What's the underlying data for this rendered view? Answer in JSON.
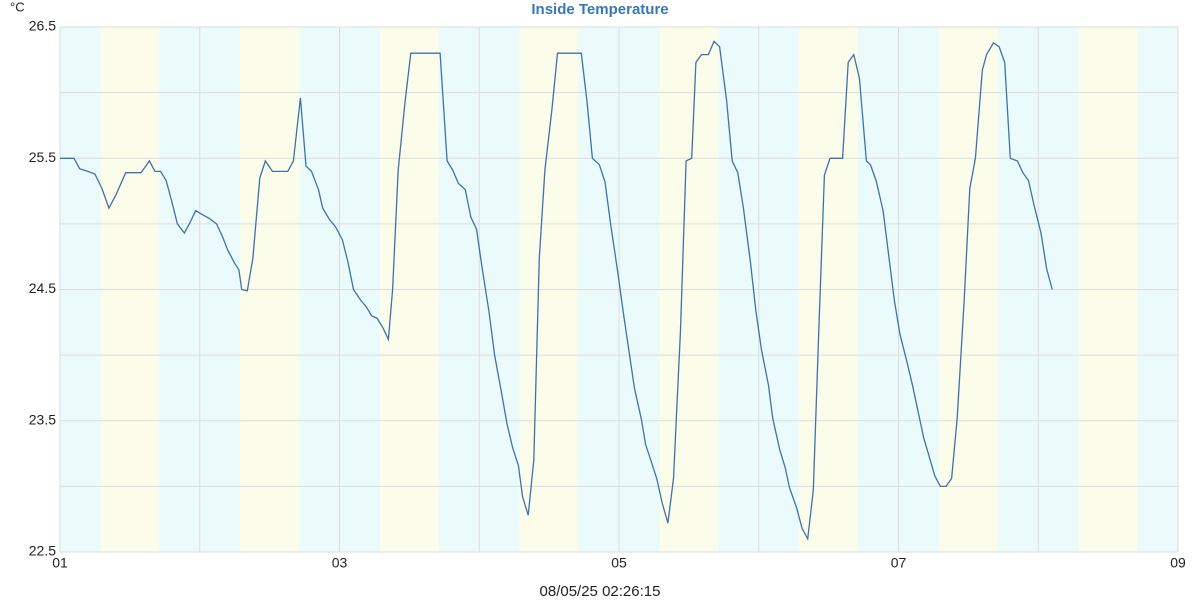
{
  "chart_data": {
    "type": "line",
    "title": "Inside Temperature",
    "y_unit": "°C",
    "footer": "08/05/25 02:26:15",
    "xlim": [
      1,
      9
    ],
    "ylim": [
      22.5,
      26.5
    ],
    "xticks": [
      {
        "value": 1,
        "label": "01"
      },
      {
        "value": 3,
        "label": "03"
      },
      {
        "value": 5,
        "label": "05"
      },
      {
        "value": 7,
        "label": "07"
      },
      {
        "value": 9,
        "label": "09"
      }
    ],
    "yticks": [
      22.5,
      23.5,
      24.5,
      25.5,
      26.5
    ],
    "xminor": [
      2,
      4,
      6,
      8
    ],
    "yminor": [
      23,
      24,
      25,
      26
    ],
    "grid": true,
    "day_spans": [
      [
        1.29,
        1.71
      ],
      [
        2.29,
        2.71
      ],
      [
        3.29,
        3.71
      ],
      [
        4.29,
        4.71
      ],
      [
        5.29,
        5.71
      ],
      [
        6.29,
        6.71
      ],
      [
        7.29,
        7.71
      ],
      [
        8.29,
        8.71
      ]
    ],
    "day_color": "#fcfcea",
    "night_color": "#ebfbfb",
    "series": [
      {
        "name": "Inside Temperature",
        "color": "#3d72aa",
        "x": [
          1.0,
          1.1,
          1.14,
          1.2,
          1.25,
          1.3,
          1.35,
          1.4,
          1.47,
          1.58,
          1.64,
          1.68,
          1.72,
          1.76,
          1.8,
          1.84,
          1.89,
          1.93,
          1.97,
          2.02,
          2.07,
          2.12,
          2.16,
          2.2,
          2.25,
          2.28,
          2.3,
          2.34,
          2.38,
          2.43,
          2.47,
          2.52,
          2.63,
          2.67,
          2.72,
          2.76,
          2.8,
          2.85,
          2.88,
          2.93,
          2.97,
          3.02,
          3.06,
          3.1,
          3.15,
          3.19,
          3.23,
          3.27,
          3.31,
          3.35,
          3.38,
          3.42,
          3.47,
          3.51,
          3.72,
          3.77,
          3.81,
          3.85,
          3.9,
          3.94,
          3.98,
          4.02,
          4.07,
          4.11,
          4.16,
          4.2,
          4.24,
          4.28,
          4.31,
          4.35,
          4.39,
          4.43,
          4.47,
          4.52,
          4.56,
          4.73,
          4.77,
          4.81,
          4.86,
          4.9,
          4.94,
          4.99,
          5.03,
          5.07,
          5.11,
          5.16,
          5.19,
          5.24,
          5.27,
          5.31,
          5.35,
          5.39,
          5.44,
          5.48,
          5.52,
          5.55,
          5.59,
          5.64,
          5.68,
          5.72,
          5.77,
          5.81,
          5.85,
          5.89,
          5.94,
          5.98,
          6.02,
          6.07,
          6.1,
          6.15,
          6.19,
          6.22,
          6.27,
          6.31,
          6.35,
          6.39,
          6.43,
          6.47,
          6.51,
          6.6,
          6.64,
          6.68,
          6.72,
          6.77,
          6.8,
          6.84,
          6.89,
          6.93,
          6.97,
          7.01,
          7.06,
          7.1,
          7.14,
          7.18,
          7.23,
          7.26,
          7.3,
          7.34,
          7.38,
          7.42,
          7.47,
          7.51,
          7.55,
          7.6,
          7.63,
          7.68,
          7.72,
          7.76,
          7.8,
          7.85,
          7.89,
          7.93,
          7.97,
          8.02,
          8.06,
          8.1
        ],
        "values": [
          25.5,
          25.5,
          25.42,
          25.4,
          25.38,
          25.27,
          25.12,
          25.22,
          25.39,
          25.39,
          25.48,
          25.4,
          25.4,
          25.33,
          25.17,
          25.0,
          24.93,
          25.01,
          25.1,
          25.07,
          25.04,
          25.0,
          24.91,
          24.8,
          24.7,
          24.65,
          24.5,
          24.49,
          24.74,
          25.35,
          25.48,
          25.4,
          25.4,
          25.48,
          25.96,
          25.44,
          25.4,
          25.26,
          25.12,
          25.03,
          24.98,
          24.88,
          24.71,
          24.5,
          24.42,
          24.37,
          24.3,
          24.28,
          24.21,
          24.12,
          24.5,
          25.41,
          25.94,
          26.3,
          26.3,
          25.48,
          25.41,
          25.31,
          25.26,
          25.05,
          24.96,
          24.67,
          24.33,
          24.0,
          23.71,
          23.47,
          23.29,
          23.16,
          22.92,
          22.78,
          23.2,
          24.74,
          25.41,
          25.87,
          26.3,
          26.3,
          25.94,
          25.5,
          25.45,
          25.32,
          25.0,
          24.64,
          24.33,
          24.04,
          23.75,
          23.51,
          23.32,
          23.16,
          23.06,
          22.87,
          22.72,
          23.06,
          24.19,
          25.48,
          25.5,
          26.23,
          26.29,
          26.29,
          26.39,
          26.35,
          25.94,
          25.48,
          25.39,
          25.12,
          24.71,
          24.33,
          24.04,
          23.77,
          23.52,
          23.28,
          23.14,
          22.99,
          22.84,
          22.68,
          22.6,
          22.97,
          24.19,
          25.37,
          25.5,
          25.5,
          26.23,
          26.29,
          26.11,
          25.48,
          25.45,
          25.33,
          25.1,
          24.76,
          24.42,
          24.16,
          23.95,
          23.77,
          23.57,
          23.37,
          23.19,
          23.08,
          23.0,
          23.0,
          23.06,
          23.52,
          24.42,
          25.27,
          25.5,
          26.17,
          26.29,
          26.38,
          26.35,
          26.23,
          25.5,
          25.48,
          25.39,
          25.33,
          25.14,
          24.93,
          24.66,
          24.5
        ]
      }
    ]
  }
}
